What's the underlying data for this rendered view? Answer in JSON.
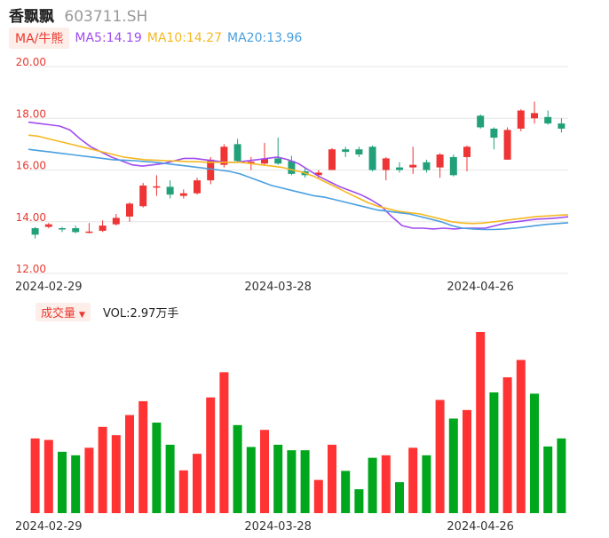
{
  "header": {
    "name": "香飘飘",
    "code": "603711.SH"
  },
  "ma_legend": {
    "label": "MA/牛熊",
    "items": [
      {
        "text": "MA5:14.19",
        "color": "#a04cf0"
      },
      {
        "text": "MA10:14.27",
        "color": "#f5b820"
      },
      {
        "text": "MA20:13.96",
        "color": "#4a9fe0"
      }
    ]
  },
  "volume_legend": {
    "label": "成交量",
    "value_text": "VOL:2.97万手"
  },
  "colors": {
    "up": "#ee3434",
    "down": "#22a079",
    "vol_up": "#ff3333",
    "vol_down": "#00a61b"
  },
  "chart_data": [
    {
      "type": "candlestick",
      "ylim": [
        12.0,
        20.0
      ],
      "y_ticks": [
        "20.00",
        "18.00",
        "16.00",
        "14.00",
        "12.00"
      ],
      "x_tick_labels": [
        "2024-02-29",
        "2024-03-28",
        "2024-04-26"
      ],
      "x_tick_index": [
        1,
        18,
        33
      ],
      "candles": [
        [
          13.75,
          13.5,
          13.8,
          13.35
        ],
        [
          13.8,
          13.9,
          13.95,
          13.75
        ],
        [
          13.75,
          13.72,
          13.8,
          13.6
        ],
        [
          13.75,
          13.6,
          13.85,
          13.55
        ],
        [
          13.6,
          13.62,
          13.95,
          13.55
        ],
        [
          13.65,
          13.85,
          14.05,
          13.6
        ],
        [
          13.9,
          14.15,
          14.3,
          13.85
        ],
        [
          14.2,
          14.7,
          14.75,
          14.0
        ],
        [
          14.6,
          15.4,
          15.5,
          14.55
        ],
        [
          15.35,
          15.37,
          15.8,
          15.0
        ],
        [
          15.35,
          15.05,
          15.6,
          14.9
        ],
        [
          15.0,
          15.1,
          15.25,
          14.9
        ],
        [
          15.1,
          15.6,
          15.7,
          15.05
        ],
        [
          15.6,
          16.4,
          16.5,
          15.45
        ],
        [
          16.2,
          16.9,
          17.0,
          16.1
        ],
        [
          17.0,
          16.35,
          17.2,
          16.3
        ],
        [
          16.3,
          16.32,
          16.5,
          16.0
        ],
        [
          16.25,
          16.45,
          17.05,
          16.2
        ],
        [
          16.45,
          16.25,
          17.25,
          16.2
        ],
        [
          16.35,
          15.85,
          16.55,
          15.8
        ],
        [
          15.95,
          15.8,
          16.1,
          15.7
        ],
        [
          15.8,
          15.9,
          16.0,
          15.7
        ],
        [
          16.0,
          16.8,
          16.85,
          16.0
        ],
        [
          16.8,
          16.7,
          16.9,
          16.5
        ],
        [
          16.8,
          16.6,
          16.9,
          16.5
        ],
        [
          16.9,
          16.0,
          16.95,
          15.95
        ],
        [
          16.0,
          16.45,
          16.5,
          15.6
        ],
        [
          16.1,
          16.0,
          16.3,
          15.9
        ],
        [
          16.1,
          16.2,
          16.9,
          15.85
        ],
        [
          16.3,
          16.0,
          16.4,
          15.9
        ],
        [
          16.1,
          16.6,
          16.65,
          15.7
        ],
        [
          16.5,
          15.8,
          16.6,
          15.75
        ],
        [
          16.5,
          16.9,
          16.95,
          15.95
        ],
        [
          18.1,
          17.65,
          18.15,
          17.6
        ],
        [
          17.6,
          17.25,
          17.65,
          16.8
        ],
        [
          16.4,
          17.55,
          17.65,
          16.4
        ],
        [
          17.6,
          18.3,
          18.35,
          17.5
        ],
        [
          18.0,
          18.2,
          18.65,
          17.8
        ],
        [
          18.05,
          17.8,
          18.3,
          17.75
        ],
        [
          17.8,
          17.6,
          18.0,
          17.45
        ]
      ],
      "ma5": [
        17.85,
        17.8,
        17.75,
        17.7,
        17.55,
        17.2,
        16.9,
        16.7,
        16.5,
        16.35,
        16.2,
        16.15,
        16.2,
        16.25,
        16.35,
        16.45,
        16.45,
        16.4,
        16.35,
        16.3,
        16.3,
        16.35,
        16.4,
        16.45,
        16.5,
        16.4,
        16.25,
        16.0,
        15.75,
        15.55,
        15.35,
        15.2,
        15.05,
        14.85,
        14.6,
        14.2,
        13.85,
        13.75,
        13.75,
        13.72,
        13.75,
        13.72,
        13.75,
        13.75,
        13.75,
        13.85,
        13.95,
        14.0,
        14.05,
        14.1,
        14.12,
        14.15,
        14.19
      ],
      "ma10": [
        17.35,
        17.3,
        17.2,
        17.1,
        17.0,
        16.9,
        16.8,
        16.7,
        16.6,
        16.5,
        16.45,
        16.4,
        16.38,
        16.36,
        16.35,
        16.33,
        16.32,
        16.3,
        16.3,
        16.3,
        16.3,
        16.25,
        16.2,
        16.15,
        16.1,
        16.0,
        15.9,
        15.75,
        15.55,
        15.35,
        15.15,
        14.95,
        14.75,
        14.6,
        14.5,
        14.4,
        14.35,
        14.3,
        14.2,
        14.1,
        14.0,
        13.95,
        13.93,
        13.95,
        14.0,
        14.05,
        14.1,
        14.15,
        14.2,
        14.22,
        14.25,
        14.27
      ],
      "ma20": [
        16.8,
        16.75,
        16.7,
        16.65,
        16.6,
        16.55,
        16.5,
        16.45,
        16.4,
        16.38,
        16.36,
        16.33,
        16.3,
        16.25,
        16.2,
        16.15,
        16.1,
        16.05,
        16.0,
        15.95,
        15.85,
        15.7,
        15.55,
        15.4,
        15.3,
        15.2,
        15.1,
        15.0,
        14.95,
        14.85,
        14.75,
        14.65,
        14.55,
        14.45,
        14.4,
        14.35,
        14.3,
        14.2,
        14.1,
        14.0,
        13.85,
        13.75,
        13.72,
        13.7,
        13.7,
        13.72,
        13.75,
        13.8,
        13.85,
        13.9,
        13.93,
        13.96
      ]
    },
    {
      "type": "bar",
      "name": "volume",
      "values": [
        2.97,
        2.91,
        2.44,
        2.3,
        2.6,
        3.43,
        3.1,
        3.9,
        4.45,
        3.6,
        2.72,
        1.7,
        2.36,
        4.6,
        5.6,
        3.5,
        2.63,
        3.31,
        2.72,
        2.5,
        2.5,
        1.32,
        2.72,
        1.68,
        0.95,
        2.2,
        2.3,
        1.23,
        2.6,
        2.3,
        4.5,
        3.76,
        4.1,
        7.2,
        4.8,
        5.4,
        6.09,
        4.75,
        2.65,
        2.97
      ],
      "up": [
        1,
        1,
        0,
        0,
        1,
        1,
        1,
        1,
        1,
        0,
        0,
        1,
        1,
        1,
        1,
        0,
        0,
        1,
        0,
        0,
        0,
        1,
        1,
        0,
        0,
        0,
        1,
        0,
        1,
        0,
        1,
        0,
        1,
        1,
        0,
        1,
        1,
        0,
        0,
        0
      ]
    }
  ]
}
